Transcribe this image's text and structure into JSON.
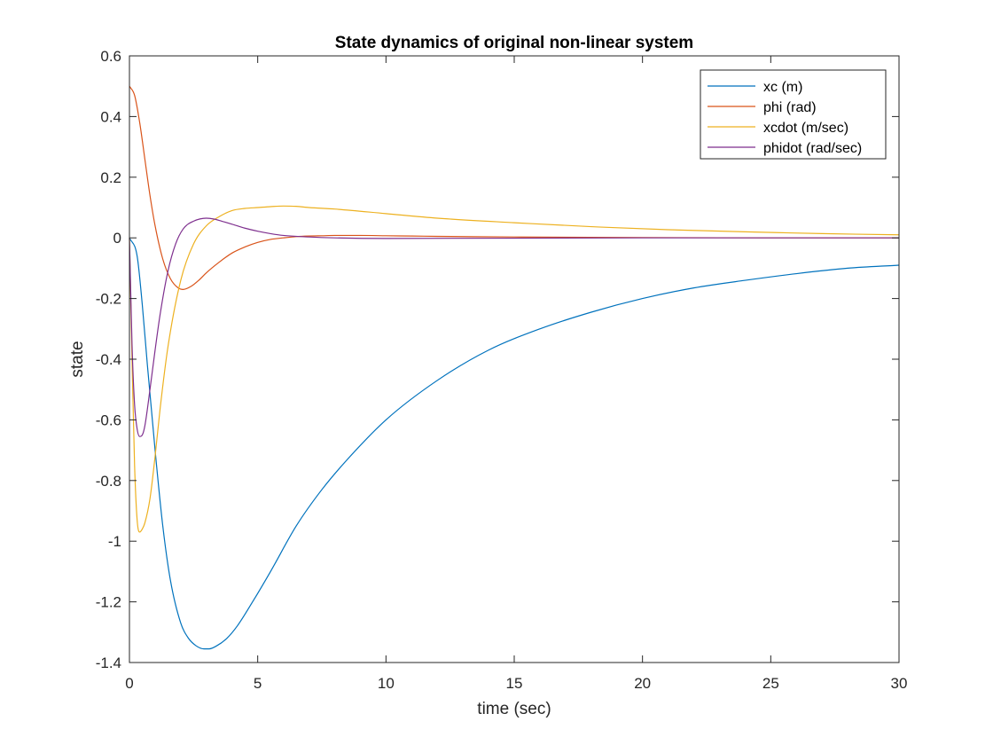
{
  "chart_data": {
    "type": "line",
    "title": "State dynamics of original non-linear system",
    "xlabel": "time (sec)",
    "ylabel": "state",
    "xlim": [
      0,
      30
    ],
    "ylim": [
      -1.4,
      0.6
    ],
    "xticks": [
      "0",
      "5",
      "10",
      "15",
      "20",
      "25",
      "30"
    ],
    "yticks": [
      "-1.4",
      "-1.2",
      "-1",
      "-0.8",
      "-0.6",
      "-0.4",
      "-0.2",
      "0",
      "0.2",
      "0.4",
      "0.6"
    ],
    "grid": false,
    "legend_position": "top-right",
    "series": [
      {
        "name": "xc (m)",
        "color": "#0072BD",
        "x": [
          0,
          0.3,
          0.5,
          0.7,
          1.0,
          1.3,
          1.6,
          2.0,
          2.3,
          2.6,
          2.9,
          3.1,
          3.4,
          3.8,
          4.2,
          4.8,
          5.5,
          6.5,
          7.5,
          8.5,
          10,
          12,
          14,
          16,
          18,
          20,
          22,
          24,
          26,
          28,
          30
        ],
        "y": [
          0,
          -0.06,
          -0.22,
          -0.42,
          -0.7,
          -0.95,
          -1.13,
          -1.27,
          -1.32,
          -1.345,
          -1.355,
          -1.355,
          -1.345,
          -1.32,
          -1.28,
          -1.2,
          -1.1,
          -0.95,
          -0.83,
          -0.73,
          -0.6,
          -0.47,
          -0.37,
          -0.3,
          -0.245,
          -0.2,
          -0.165,
          -0.14,
          -0.118,
          -0.1,
          -0.09
        ]
      },
      {
        "name": "phi (rad)",
        "color": "#D95319",
        "x": [
          0,
          0.2,
          0.4,
          0.6,
          0.8,
          1.0,
          1.3,
          1.6,
          1.9,
          2.1,
          2.4,
          2.7,
          3.0,
          3.5,
          4.0,
          4.5,
          5.0,
          5.5,
          6.0,
          6.5,
          7.0,
          7.5,
          8.0,
          9.0,
          10,
          11,
          12,
          15,
          20,
          25,
          30
        ],
        "y": [
          0.5,
          0.47,
          0.38,
          0.26,
          0.14,
          0.04,
          -0.07,
          -0.135,
          -0.165,
          -0.17,
          -0.16,
          -0.14,
          -0.115,
          -0.08,
          -0.05,
          -0.03,
          -0.015,
          -0.005,
          0.0,
          0.004,
          0.006,
          0.007,
          0.008,
          0.008,
          0.007,
          0.006,
          0.005,
          0.003,
          0.001,
          0.0,
          0.0
        ]
      },
      {
        "name": "xcdot (m/sec)",
        "color": "#EDB120",
        "x": [
          0,
          0.1,
          0.2,
          0.3,
          0.4,
          0.5,
          0.6,
          0.8,
          1.0,
          1.2,
          1.5,
          2.0,
          2.5,
          3.0,
          3.5,
          4.0,
          4.5,
          5.0,
          5.5,
          6.0,
          6.5,
          7.0,
          8.0,
          10,
          12,
          15,
          18,
          21,
          24,
          27,
          30
        ],
        "y": [
          0,
          -0.4,
          -0.75,
          -0.93,
          -0.97,
          -0.96,
          -0.94,
          -0.86,
          -0.72,
          -0.56,
          -0.36,
          -0.14,
          -0.02,
          0.04,
          0.07,
          0.09,
          0.097,
          0.1,
          0.103,
          0.105,
          0.104,
          0.1,
          0.095,
          0.08,
          0.065,
          0.05,
          0.037,
          0.027,
          0.02,
          0.014,
          0.01
        ]
      },
      {
        "name": "phidot (rad/sec)",
        "color": "#7E2F8E",
        "x": [
          0,
          0.1,
          0.2,
          0.3,
          0.4,
          0.5,
          0.6,
          0.8,
          1.0,
          1.2,
          1.5,
          1.8,
          2.1,
          2.5,
          3.0,
          3.3,
          3.6,
          4.0,
          4.5,
          5.0,
          5.5,
          6.0,
          7.0,
          8.0,
          10,
          15,
          20,
          25,
          30
        ],
        "y": [
          0,
          -0.35,
          -0.55,
          -0.63,
          -0.655,
          -0.65,
          -0.62,
          -0.5,
          -0.37,
          -0.25,
          -0.11,
          -0.02,
          0.03,
          0.055,
          0.065,
          0.062,
          0.055,
          0.045,
          0.032,
          0.022,
          0.014,
          0.008,
          0.003,
          0.0,
          -0.002,
          -0.001,
          0.0,
          0.0,
          0.0
        ]
      }
    ]
  }
}
